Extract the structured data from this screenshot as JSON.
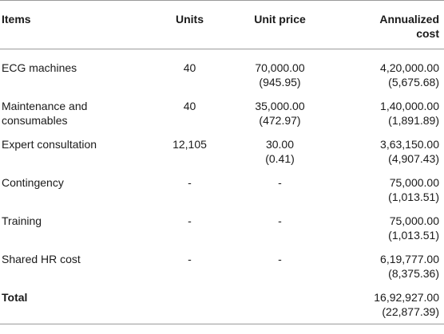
{
  "headers": {
    "items": "Items",
    "units": "Units",
    "unit_price": "Unit price",
    "annualized_cost_line1": "Annualized",
    "annualized_cost_line2": "cost"
  },
  "rows": [
    {
      "item_line1": "ECG machines",
      "item_line2": "",
      "units": "40",
      "price": "70,000.00",
      "price_usd": "(945.95)",
      "cost": "4,20,000.00",
      "cost_usd": "(5,675.68)"
    },
    {
      "item_line1": "Maintenance and",
      "item_line2": "consumables",
      "units": "40",
      "price": "35,000.00",
      "price_usd": "(472.97)",
      "cost": "1,40,000.00",
      "cost_usd": "(1,891.89)"
    },
    {
      "item_line1": "Expert consultation",
      "item_line2": "",
      "units": "12,105",
      "price": "30.00",
      "price_usd": "(0.41)",
      "cost": "3,63,150.00",
      "cost_usd": "(4,907.43)"
    },
    {
      "item_line1": "Contingency",
      "item_line2": "",
      "units": "-",
      "price": "-",
      "price_usd": "",
      "cost": "75,000.00",
      "cost_usd": "(1,013.51)"
    },
    {
      "item_line1": "Training",
      "item_line2": "",
      "units": "-",
      "price": "-",
      "price_usd": "",
      "cost": "75,000.00",
      "cost_usd": "(1,013.51)"
    },
    {
      "item_line1": "Shared HR cost",
      "item_line2": "",
      "units": "-",
      "price": "-",
      "price_usd": "",
      "cost": "6,19,777.00",
      "cost_usd": "(8,375.36)"
    }
  ],
  "total": {
    "label": "Total",
    "cost": "16,92,927.00",
    "cost_usd": "(22,877.39)"
  }
}
